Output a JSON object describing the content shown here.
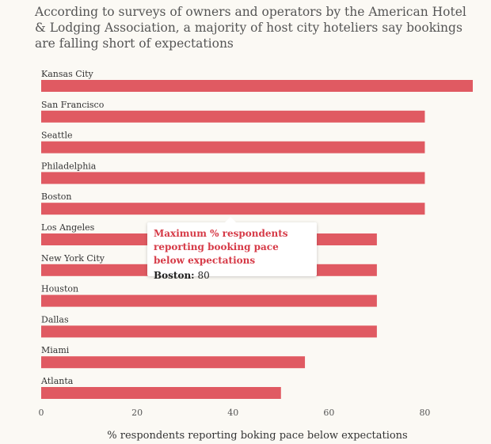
{
  "chart_data": {
    "type": "bar",
    "orientation": "horizontal",
    "title": "According to surveys of owners and operators by the American Hotel & Lodging Association, a majority of host city hoteliers say bookings are falling short of expectations",
    "xlabel": "% respondents reporting boking pace below expectations",
    "categories": [
      "Kansas City",
      "San Francisco",
      "Seattle",
      "Philadelphia",
      "Boston",
      "Los Angeles",
      "New York City",
      "Houston",
      "Dallas",
      "Miami",
      "Atlanta"
    ],
    "values": [
      90,
      80,
      80,
      80,
      80,
      70,
      70,
      70,
      70,
      55,
      50
    ],
    "xlim": [
      0,
      90
    ],
    "xticks": [
      0,
      20,
      40,
      60,
      80
    ],
    "grid": false,
    "bar_color": "#e05a62",
    "tooltip": {
      "title": "Maximum % respondents reporting booking pace below expectations",
      "label": "Boston:",
      "value": "80"
    }
  }
}
